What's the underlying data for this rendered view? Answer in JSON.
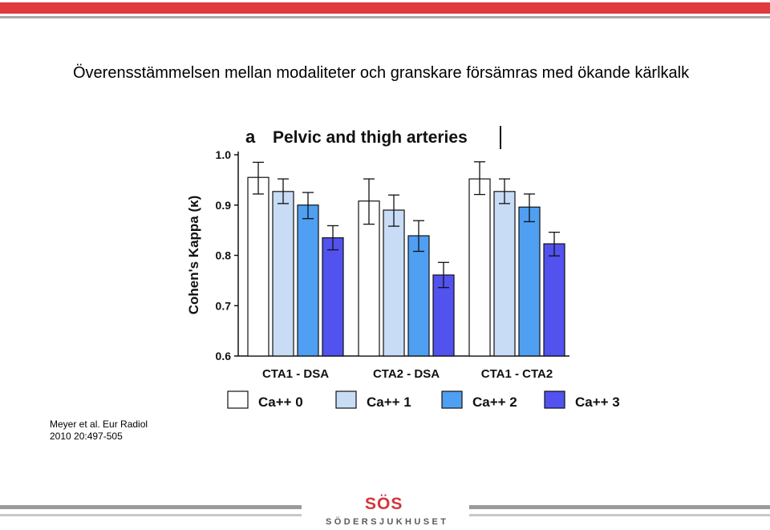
{
  "slide": {
    "title": "Överensstämmelsen mellan modaliteter och granskare försämras med ökande kärlkalk",
    "citation_line1": "Meyer  et al. Eur Radiol",
    "citation_line2": "2010 20:497-505"
  },
  "footer": {
    "logo_mark": "SÖS",
    "logo_name": "SÖDERSJUKHUSET"
  },
  "colors": {
    "top_bar": "#e03a3e",
    "logo_red": "#d3363c",
    "series": [
      "#ffffff",
      "#c8dcf6",
      "#4f9ff2",
      "#5252ef"
    ]
  },
  "chart_data": {
    "type": "bar",
    "panel_letter": "a",
    "title": "Pelvic and thigh arteries",
    "ylabel": "Cohen's Kappa (κ)",
    "xlabel": "",
    "ylim": [
      0.6,
      1.0
    ],
    "yticks": [
      "0.6",
      "0.7",
      "0.8",
      "0.9",
      "1.0"
    ],
    "categories": [
      "CTA1 - DSA",
      "CTA2 - DSA",
      "CTA1 - CTA2"
    ],
    "legend_position": "bottom",
    "series": [
      {
        "name": "Ca++ 0",
        "values": [
          0.955,
          0.908,
          0.952
        ],
        "err_low": [
          0.922,
          0.862,
          0.921
        ],
        "err_high": [
          0.985,
          0.952,
          0.986
        ]
      },
      {
        "name": "Ca++ 1",
        "values": [
          0.927,
          0.89,
          0.927
        ],
        "err_low": [
          0.903,
          0.858,
          0.903
        ],
        "err_high": [
          0.952,
          0.92,
          0.952
        ]
      },
      {
        "name": "Ca++ 2",
        "values": [
          0.9,
          0.839,
          0.896
        ],
        "err_low": [
          0.873,
          0.808,
          0.867
        ],
        "err_high": [
          0.925,
          0.869,
          0.922
        ]
      },
      {
        "name": "Ca++ 3",
        "values": [
          0.835,
          0.761,
          0.823
        ],
        "err_low": [
          0.811,
          0.736,
          0.799
        ],
        "err_high": [
          0.859,
          0.786,
          0.846
        ]
      }
    ]
  }
}
